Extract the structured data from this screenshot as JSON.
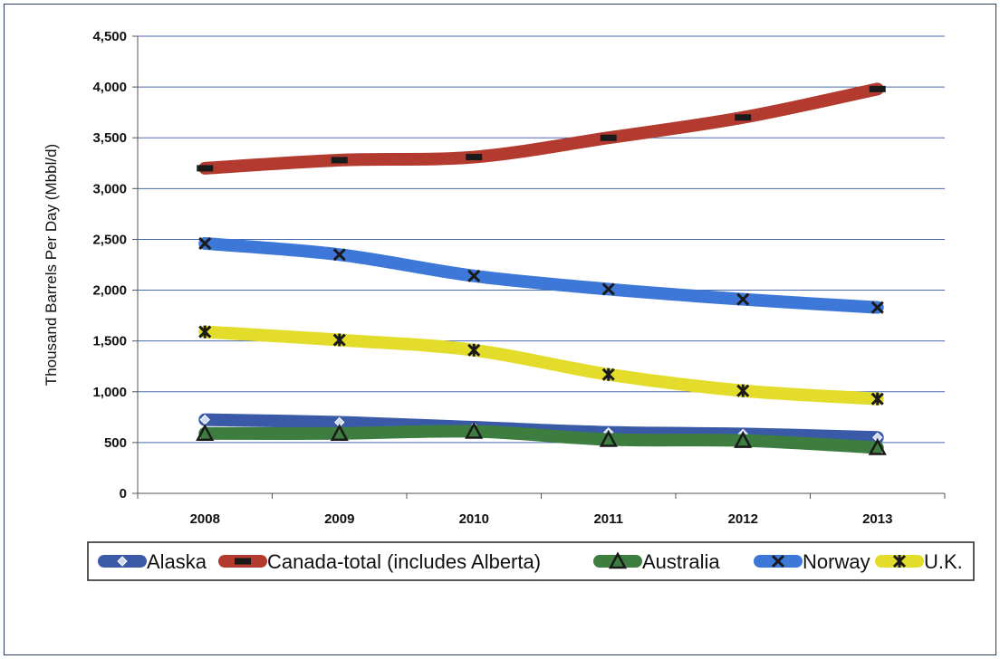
{
  "chart_data": {
    "type": "line",
    "title": "",
    "xlabel": "",
    "ylabel": "Thousand Barrels Per Day (Mbbl/d)",
    "x": [
      "2008",
      "2009",
      "2010",
      "2011",
      "2012",
      "2013"
    ],
    "ylim": [
      0,
      4500
    ],
    "yticks": [
      0,
      500,
      1000,
      1500,
      2000,
      2500,
      3000,
      3500,
      4000,
      4500
    ],
    "ytick_labels": [
      "0",
      "500",
      "1,000",
      "1,500",
      "2,000",
      "2,500",
      "3,000",
      "3,500",
      "4,000",
      "4,500"
    ],
    "grid": "horizontal",
    "legend_position": "bottom",
    "series": [
      {
        "name": "Alaska",
        "color": "#3a5aa8",
        "marker": "diamond",
        "values": [
          725,
          700,
          650,
          600,
          585,
          550
        ]
      },
      {
        "name": "Canada-total (includes Alberta)",
        "color": "#b33a2e",
        "marker": "dash",
        "values": [
          3200,
          3280,
          3310,
          3500,
          3700,
          3980
        ]
      },
      {
        "name": "Australia",
        "color": "#3d7d3f",
        "marker": "triangle",
        "values": [
          590,
          590,
          610,
          530,
          520,
          450
        ]
      },
      {
        "name": "Norway",
        "color": "#3d78d8",
        "marker": "x",
        "values": [
          2460,
          2350,
          2140,
          2010,
          1910,
          1830
        ]
      },
      {
        "name": "U.K.",
        "color": "#e3dc2a",
        "marker": "star",
        "values": [
          1590,
          1510,
          1410,
          1170,
          1010,
          930
        ]
      }
    ]
  }
}
